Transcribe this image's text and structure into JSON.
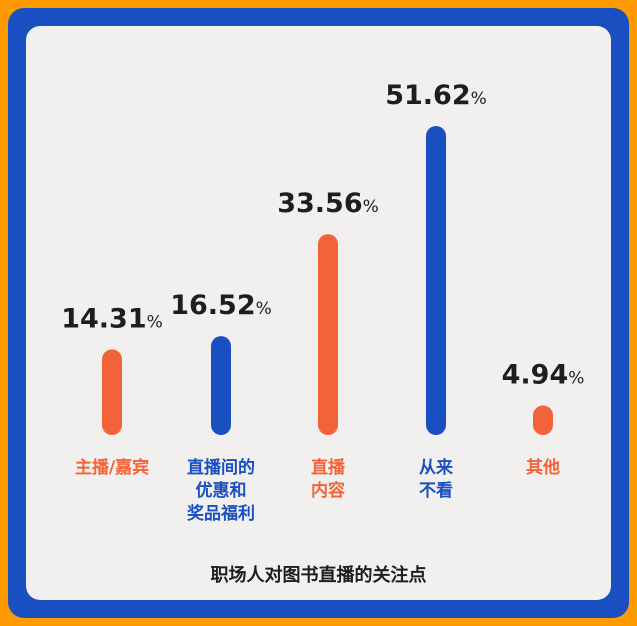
{
  "colors": {
    "background": "#FF9A00",
    "frame": "#1A4FC2",
    "card": "#F1F0EE",
    "orange": "#F2633A",
    "blue": "#1A4FC2",
    "text": "#1E1E1E"
  },
  "chart_data": {
    "type": "bar",
    "title": "职场人对图书直播的关注点",
    "categories": [
      [
        "主播/嘉宾"
      ],
      [
        "直播间的",
        "优惠和",
        "奖品福利"
      ],
      [
        "直播",
        "内容"
      ],
      [
        "从来",
        "不看"
      ],
      [
        "其他"
      ]
    ],
    "values": [
      14.31,
      16.52,
      33.56,
      51.62,
      4.94
    ],
    "value_labels": [
      "14.31",
      "16.52",
      "33.56",
      "51.62",
      "4.94"
    ],
    "unit": "%",
    "bar_colors": [
      "orange",
      "blue",
      "orange",
      "blue",
      "orange"
    ],
    "ylim": [
      0,
      51.62
    ],
    "grid": false,
    "legend": "none"
  }
}
